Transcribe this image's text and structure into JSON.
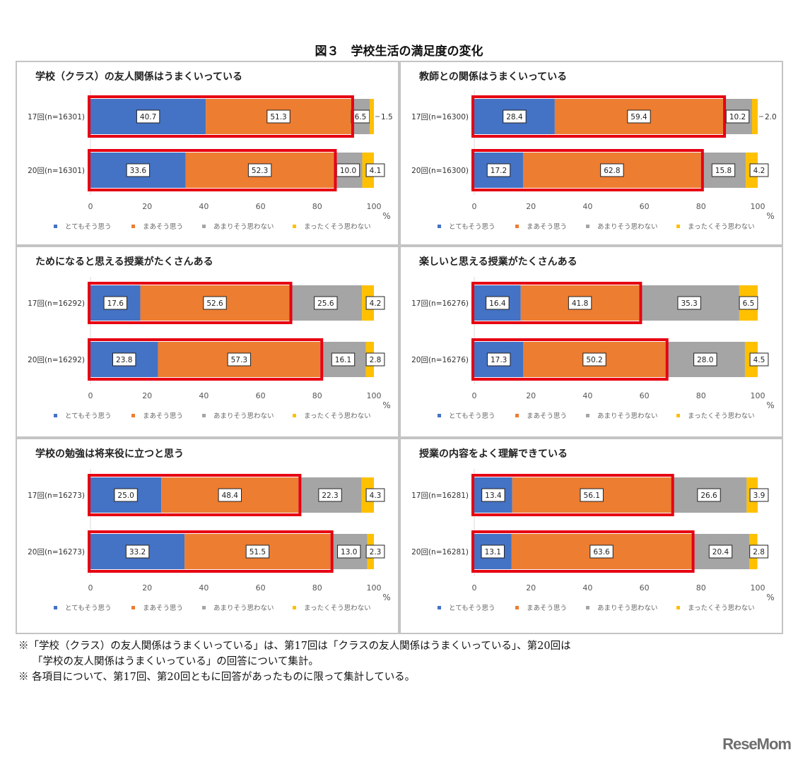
{
  "figure_title": "図３　学校生活の満足度の変化",
  "legend": [
    "とてもそう思う",
    "まあそう思う",
    "あまりそう思わない",
    "まったくそう思わない"
  ],
  "colors": [
    "#4472c4",
    "#ed7d31",
    "#a5a5a5",
    "#ffc000"
  ],
  "highlight_color": "#e60012",
  "axis": {
    "ticks": [
      "0",
      "20",
      "40",
      "60",
      "80",
      "100"
    ],
    "unit": "%"
  },
  "chart_data": [
    {
      "type": "bar",
      "stacked": true,
      "orientation": "horizontal",
      "title": "学校（クラス）の友人関係はうまくいっている",
      "categories": [
        "17回(n=16301)",
        "20回(n=16301)"
      ],
      "series": [
        {
          "name": "とてもそう思う",
          "values": [
            40.7,
            33.6
          ]
        },
        {
          "name": "まあそう思う",
          "values": [
            51.3,
            52.3
          ]
        },
        {
          "name": "あまりそう思わない",
          "values": [
            6.5,
            10.0
          ]
        },
        {
          "name": "まったくそう思わない",
          "values": [
            1.5,
            4.1
          ]
        }
      ],
      "xlim": [
        0,
        100
      ],
      "xlabel": "%"
    },
    {
      "type": "bar",
      "stacked": true,
      "orientation": "horizontal",
      "title": "教師との関係はうまくいっている",
      "categories": [
        "17回(n=16300)",
        "20回(n=16300)"
      ],
      "series": [
        {
          "name": "とてもそう思う",
          "values": [
            28.4,
            17.2
          ]
        },
        {
          "name": "まあそう思う",
          "values": [
            59.4,
            62.8
          ]
        },
        {
          "name": "あまりそう思わない",
          "values": [
            10.2,
            15.8
          ]
        },
        {
          "name": "まったくそう思わない",
          "values": [
            2.0,
            4.2
          ]
        }
      ],
      "xlim": [
        0,
        100
      ],
      "xlabel": "%"
    },
    {
      "type": "bar",
      "stacked": true,
      "orientation": "horizontal",
      "title": "ためになると思える授業がたくさんある",
      "categories": [
        "17回(n=16292)",
        "20回(n=16292)"
      ],
      "series": [
        {
          "name": "とてもそう思う",
          "values": [
            17.6,
            23.8
          ]
        },
        {
          "name": "まあそう思う",
          "values": [
            52.6,
            57.3
          ]
        },
        {
          "name": "あまりそう思わない",
          "values": [
            25.6,
            16.1
          ]
        },
        {
          "name": "まったくそう思わない",
          "values": [
            4.2,
            2.8
          ]
        }
      ],
      "xlim": [
        0,
        100
      ],
      "xlabel": "%"
    },
    {
      "type": "bar",
      "stacked": true,
      "orientation": "horizontal",
      "title": "楽しいと思える授業がたくさんある",
      "categories": [
        "17回(n=16276)",
        "20回(n=16276)"
      ],
      "series": [
        {
          "name": "とてもそう思う",
          "values": [
            16.4,
            17.3
          ]
        },
        {
          "name": "まあそう思う",
          "values": [
            41.8,
            50.2
          ]
        },
        {
          "name": "あまりそう思わない",
          "values": [
            35.3,
            28.0
          ]
        },
        {
          "name": "まったくそう思わない",
          "values": [
            6.5,
            4.5
          ]
        }
      ],
      "xlim": [
        0,
        100
      ],
      "xlabel": "%"
    },
    {
      "type": "bar",
      "stacked": true,
      "orientation": "horizontal",
      "title": "学校の勉強は将来役に立つと思う",
      "categories": [
        "17回(n=16273)",
        "20回(n=16273)"
      ],
      "series": [
        {
          "name": "とてもそう思う",
          "values": [
            25.0,
            33.2
          ]
        },
        {
          "name": "まあそう思う",
          "values": [
            48.4,
            51.5
          ]
        },
        {
          "name": "あまりそう思わない",
          "values": [
            22.3,
            13.0
          ]
        },
        {
          "name": "まったくそう思わない",
          "values": [
            4.3,
            2.3
          ]
        }
      ],
      "xlim": [
        0,
        100
      ],
      "xlabel": "%"
    },
    {
      "type": "bar",
      "stacked": true,
      "orientation": "horizontal",
      "title": "授業の内容をよく理解できている",
      "categories": [
        "17回(n=16281)",
        "20回(n=16281)"
      ],
      "series": [
        {
          "name": "とてもそう思う",
          "values": [
            13.4,
            13.1
          ]
        },
        {
          "name": "まあそう思う",
          "values": [
            56.1,
            63.6
          ]
        },
        {
          "name": "あまりそう思わない",
          "values": [
            26.6,
            20.4
          ]
        },
        {
          "name": "まったくそう思わない",
          "values": [
            3.9,
            2.8
          ]
        }
      ],
      "xlim": [
        0,
        100
      ],
      "xlabel": "%"
    }
  ],
  "notes": [
    "※「学校（クラス）の友人関係はうまくいっている」は、第17回は「クラスの友人関係はうまくいっている」、第20回は",
    "「学校の友人関係はうまくいっている」の回答について集計。",
    "※ 各項目について、第17回、第20回ともに回答があったものに限って集計している。"
  ],
  "watermark": "ReseMom"
}
